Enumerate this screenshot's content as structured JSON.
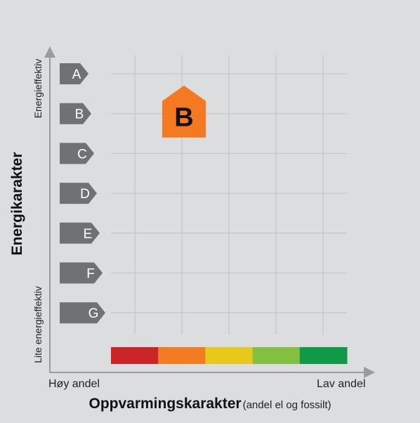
{
  "chart_data": {
    "type": "energy-label-matrix",
    "y_axis_title": "Energikarakter",
    "y_top_label": "Energieffektiv",
    "y_bottom_label": "Lite energieffektiv",
    "x_axis_title": "Oppvarmingskarakter",
    "x_axis_subtitle": "(andel el og fossilt)",
    "x_left_label": "Høy andel",
    "x_right_label": "Lav andel",
    "energy_grades": [
      "A",
      "B",
      "C",
      "D",
      "E",
      "F",
      "G"
    ],
    "heating_scale_colors": [
      "#cc2529",
      "#f37c22",
      "#e8c91b",
      "#83bf41",
      "#109a48"
    ],
    "result": {
      "energy_grade": "B",
      "heating_grade_index": 2,
      "color": "#f47920"
    },
    "grid": true
  }
}
